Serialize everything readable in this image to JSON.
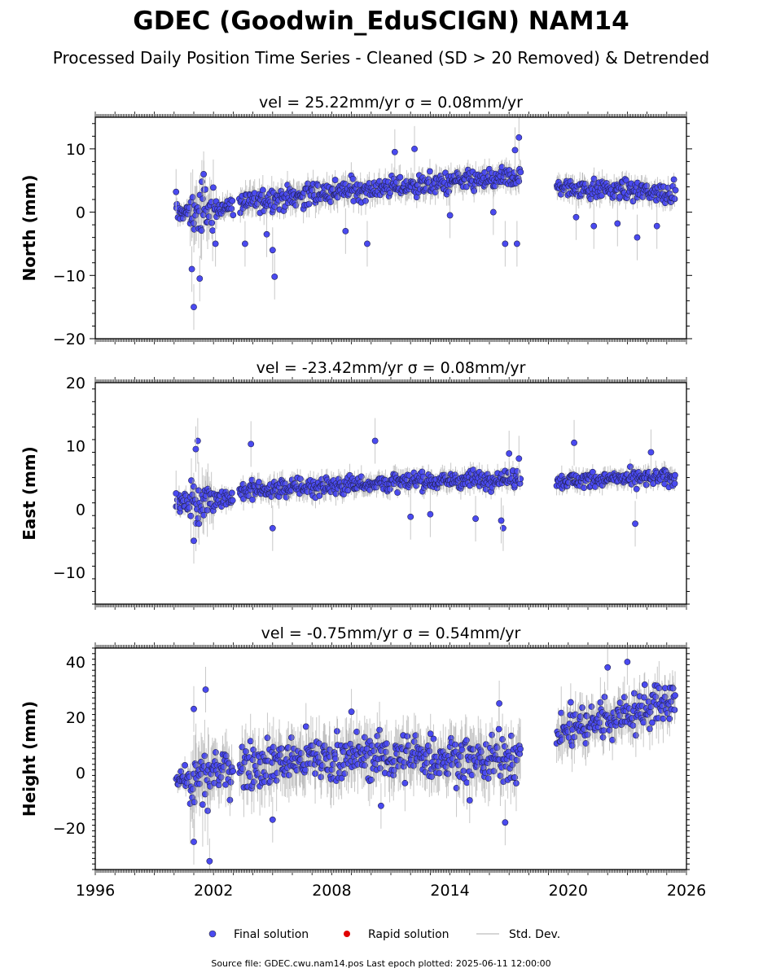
{
  "figure": {
    "title": "GDEC (Goodwin_EduSCIGN) NAM14",
    "subtitle": "Processed Daily Position Time Series - Cleaned (SD > 20 Removed) & Detrended",
    "footer": "Source file: GDEC.cwu.nam14.pos  Last epoch plotted: 2025-06-11 12:00:00"
  },
  "legend": {
    "items": [
      {
        "label": "Final solution",
        "color": "#4a4af0",
        "marker": "circle"
      },
      {
        "label": "Rapid solution",
        "color": "#e00000",
        "marker": "circle"
      },
      {
        "label": "Std. Dev.",
        "color": "#c8c8c8",
        "marker": "line"
      }
    ]
  },
  "chart_data": [
    {
      "type": "scatter",
      "panel_title": "vel = 25.22mm/yr   σ = 0.08mm/yr",
      "ylabel": "North (mm)",
      "xlim": [
        1996,
        2026
      ],
      "ylim": [
        -20,
        15
      ],
      "yticks": [
        -20,
        -10,
        0,
        10
      ],
      "xticks": [],
      "grid": false,
      "series": [
        {
          "name": "Final solution",
          "segments": [
            {
              "x0": 2000.1,
              "x1": 2000.8,
              "y0": 0.0,
              "y1": 0.0,
              "spread": 1.2
            },
            {
              "x0": 2000.8,
              "x1": 2002.0,
              "y0": 0.0,
              "y1": 0.5,
              "spread": 3.5
            },
            {
              "x0": 2002.0,
              "x1": 2003.0,
              "y0": 0.5,
              "y1": 1.0,
              "spread": 1.5
            },
            {
              "x0": 2003.3,
              "x1": 2009.0,
              "y0": 1.5,
              "y1": 3.5,
              "spread": 1.8
            },
            {
              "x0": 2009.0,
              "x1": 2017.6,
              "y0": 3.5,
              "y1": 5.5,
              "spread": 1.6
            },
            {
              "x0": 2019.4,
              "x1": 2025.45,
              "y0": 4.0,
              "y1": 3.0,
              "spread": 1.4
            }
          ]
        },
        {
          "name": "Rapid solution",
          "points": []
        }
      ],
      "outliers": [
        {
          "x": 2001.0,
          "y": -15.0
        },
        {
          "x": 2001.3,
          "y": -10.5
        },
        {
          "x": 2000.9,
          "y": -9.0
        },
        {
          "x": 2001.5,
          "y": 6.0
        },
        {
          "x": 2002.1,
          "y": -5.0
        },
        {
          "x": 2005.1,
          "y": -10.2
        },
        {
          "x": 2005.0,
          "y": -6.0
        },
        {
          "x": 2004.7,
          "y": -3.5
        },
        {
          "x": 2003.6,
          "y": -5.0
        },
        {
          "x": 2009.8,
          "y": -5.0
        },
        {
          "x": 2011.2,
          "y": 9.5
        },
        {
          "x": 2012.2,
          "y": 10.0
        },
        {
          "x": 2017.5,
          "y": 11.8
        },
        {
          "x": 2017.3,
          "y": 9.8
        },
        {
          "x": 2016.8,
          "y": -5.0
        },
        {
          "x": 2017.4,
          "y": -5.0
        },
        {
          "x": 2014.0,
          "y": -0.5
        },
        {
          "x": 2016.2,
          "y": 0.0
        },
        {
          "x": 2020.4,
          "y": -0.8
        },
        {
          "x": 2021.3,
          "y": -2.2
        },
        {
          "x": 2023.5,
          "y": -4.0
        },
        {
          "x": 2024.5,
          "y": -2.2
        },
        {
          "x": 2022.5,
          "y": -1.8
        },
        {
          "x": 2008.7,
          "y": -3.0
        },
        {
          "x": 2000.1,
          "y": 3.2
        }
      ]
    },
    {
      "type": "scatter",
      "panel_title": "vel = -23.42mm/yr   σ = 0.08mm/yr",
      "ylabel": "East (mm)",
      "xlim": [
        1996,
        2026
      ],
      "ylim": [
        -15,
        20
      ],
      "yticks": [
        -10,
        0,
        10,
        20
      ],
      "xticks": [],
      "grid": false,
      "series": [
        {
          "name": "Final solution",
          "segments": [
            {
              "x0": 2000.1,
              "x1": 2000.8,
              "y0": 1.0,
              "y1": 1.0,
              "spread": 1.2
            },
            {
              "x0": 2000.8,
              "x1": 2002.0,
              "y0": 1.0,
              "y1": 1.5,
              "spread": 3.2
            },
            {
              "x0": 2002.0,
              "x1": 2003.0,
              "y0": 1.5,
              "y1": 2.0,
              "spread": 1.2
            },
            {
              "x0": 2003.3,
              "x1": 2009.0,
              "y0": 2.8,
              "y1": 4.0,
              "spread": 1.4
            },
            {
              "x0": 2009.0,
              "x1": 2017.6,
              "y0": 4.0,
              "y1": 5.0,
              "spread": 1.3
            },
            {
              "x0": 2019.4,
              "x1": 2025.45,
              "y0": 4.5,
              "y1": 5.0,
              "spread": 1.2
            }
          ]
        },
        {
          "name": "Rapid solution",
          "points": []
        }
      ],
      "outliers": [
        {
          "x": 2001.2,
          "y": 10.8
        },
        {
          "x": 2001.1,
          "y": 9.5
        },
        {
          "x": 2003.9,
          "y": 10.3
        },
        {
          "x": 2001.0,
          "y": -5.0
        },
        {
          "x": 2005.0,
          "y": -3.0
        },
        {
          "x": 2010.2,
          "y": 10.8
        },
        {
          "x": 2012.0,
          "y": -1.2
        },
        {
          "x": 2013.0,
          "y": -0.8
        },
        {
          "x": 2015.3,
          "y": -1.5
        },
        {
          "x": 2016.7,
          "y": -3.0
        },
        {
          "x": 2016.6,
          "y": -1.8
        },
        {
          "x": 2017.0,
          "y": 8.8
        },
        {
          "x": 2020.3,
          "y": 10.5
        },
        {
          "x": 2023.4,
          "y": -2.3
        },
        {
          "x": 2024.2,
          "y": 9.0
        },
        {
          "x": 2017.5,
          "y": 8.0
        },
        {
          "x": 2000.1,
          "y": 2.5
        }
      ]
    },
    {
      "type": "scatter",
      "panel_title": "vel = -0.75mm/yr   σ = 0.54mm/yr",
      "ylabel": "Height (mm)",
      "xlim": [
        1996,
        2026
      ],
      "ylim": [
        -35,
        45
      ],
      "yticks": [
        -20,
        0,
        20,
        40
      ],
      "xticks": [
        1996,
        2002,
        2008,
        2014,
        2020,
        2026
      ],
      "grid": false,
      "series": [
        {
          "name": "Final solution",
          "segments": [
            {
              "x0": 2000.1,
              "x1": 2000.8,
              "y0": -2.0,
              "y1": -2.0,
              "spread": 3.0
            },
            {
              "x0": 2000.8,
              "x1": 2002.0,
              "y0": -5.0,
              "y1": -2.0,
              "spread": 11.0
            },
            {
              "x0": 2002.0,
              "x1": 2003.0,
              "y0": 0.0,
              "y1": 2.0,
              "spread": 7.0
            },
            {
              "x0": 2003.3,
              "x1": 2009.0,
              "y0": 3.0,
              "y1": 6.0,
              "spread": 8.0
            },
            {
              "x0": 2009.0,
              "x1": 2017.6,
              "y0": 6.0,
              "y1": 5.0,
              "spread": 8.0
            },
            {
              "x0": 2019.4,
              "x1": 2025.45,
              "y0": 15.0,
              "y1": 26.0,
              "spread": 7.0
            }
          ]
        },
        {
          "name": "Rapid solution",
          "points": []
        }
      ],
      "outliers": [
        {
          "x": 2001.6,
          "y": 30.0
        },
        {
          "x": 2001.8,
          "y": -32.0
        },
        {
          "x": 2001.0,
          "y": -25.0
        },
        {
          "x": 2001.0,
          "y": 23.0
        },
        {
          "x": 2005.0,
          "y": -17.0
        },
        {
          "x": 2016.8,
          "y": -18.0
        },
        {
          "x": 2016.5,
          "y": 25.0
        },
        {
          "x": 2023.0,
          "y": 40.0
        },
        {
          "x": 2022.0,
          "y": 38.0
        },
        {
          "x": 2010.5,
          "y": -12.0
        },
        {
          "x": 2015.0,
          "y": -10.0
        },
        {
          "x": 2009.0,
          "y": 22.0
        }
      ]
    }
  ]
}
